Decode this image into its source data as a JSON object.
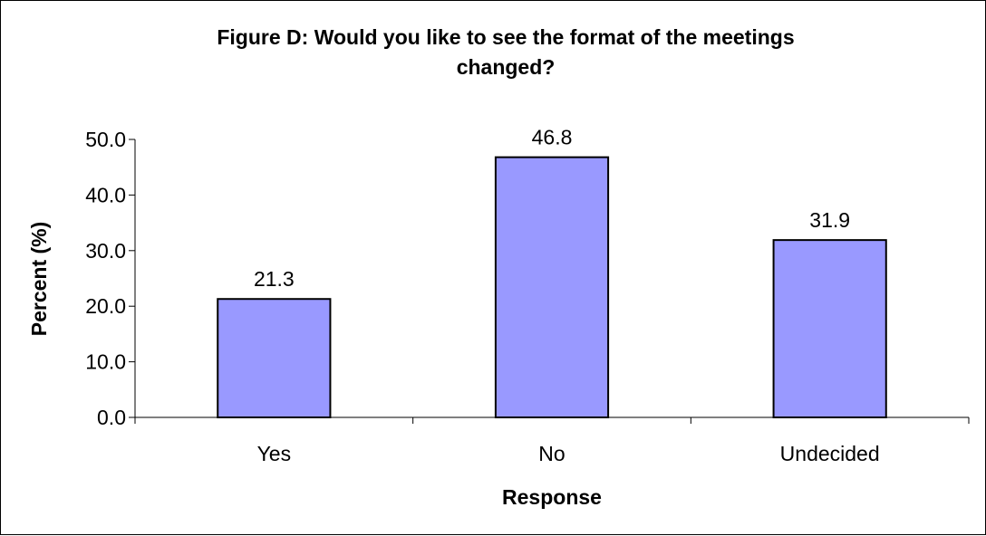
{
  "chart_data": {
    "type": "bar",
    "title": "Figure D: Would you like to see the format of the meetings changed?",
    "title_lines": [
      "Figure D: Would you like to see the format of the meetings",
      "changed?"
    ],
    "categories": [
      "Yes",
      "No",
      "Undecided"
    ],
    "values": [
      21.3,
      46.8,
      31.9
    ],
    "data_labels": [
      "21.3",
      "46.8",
      "31.9"
    ],
    "xlabel": "Response",
    "ylabel": "Percent (%)",
    "ylim": [
      0,
      50
    ],
    "yticks": [
      "0.0",
      "10.0",
      "20.0",
      "30.0",
      "40.0",
      "50.0"
    ],
    "grid": false,
    "legend": "none",
    "bar_color": "#9999ff",
    "bar_border_color": "#000000"
  }
}
